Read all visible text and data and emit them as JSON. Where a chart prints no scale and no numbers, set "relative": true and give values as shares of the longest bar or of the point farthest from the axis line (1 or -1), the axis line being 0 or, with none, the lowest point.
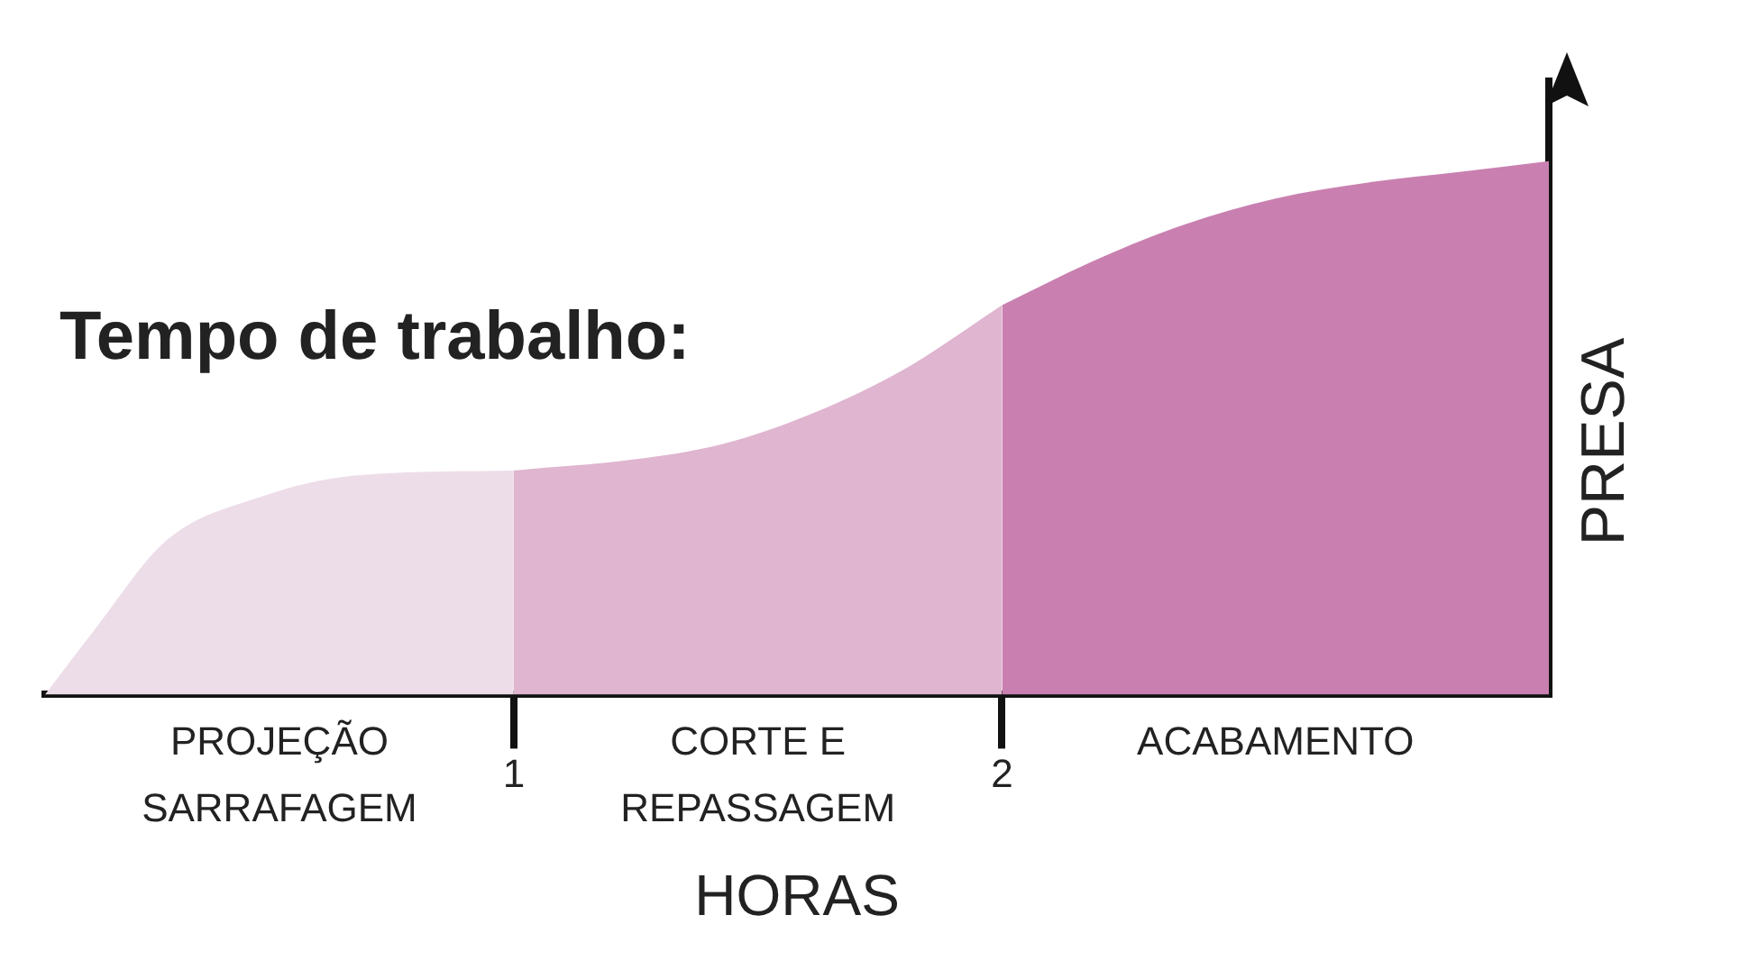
{
  "chart_data": {
    "type": "area",
    "title": "Tempo de trabalho:",
    "xlabel": "HORAS",
    "ylabel": "PRESA",
    "relative": true,
    "legend": false,
    "xlim": [
      0.04,
      3.12
    ],
    "xticks": [
      1,
      2
    ],
    "series": [
      {
        "name": "PROJEÇÃO SARRAFAGEM",
        "color": "#eddde9",
        "x": [
          0.04,
          0.14,
          0.29,
          0.48,
          0.67,
          1.0
        ],
        "values": [
          0,
          0.12,
          0.29,
          0.37,
          0.41,
          0.42
        ]
      },
      {
        "name": "CORTE E REPASSAGEM",
        "color": "#dfb5d0",
        "x": [
          1.0,
          1.24,
          1.43,
          1.62,
          1.8,
          2.0
        ],
        "values": [
          0.42,
          0.44,
          0.47,
          0.53,
          0.61,
          0.73
        ]
      },
      {
        "name": "ACABAMENTO",
        "color": "#c980b0",
        "x": [
          2.0,
          2.18,
          2.37,
          2.56,
          2.75,
          2.94,
          3.12
        ],
        "values": [
          0.73,
          0.81,
          0.88,
          0.93,
          0.96,
          0.98,
          1
        ]
      }
    ]
  }
}
